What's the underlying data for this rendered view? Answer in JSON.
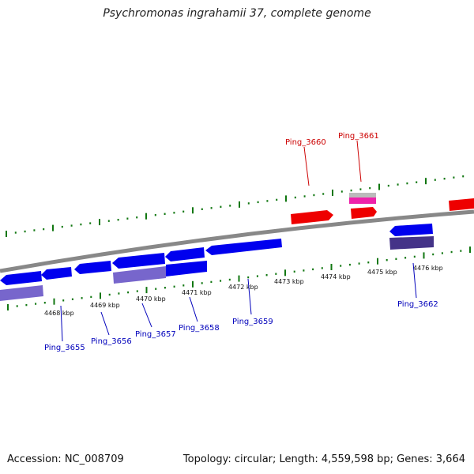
{
  "title": "Psychromonas ingrahamii 37, complete genome",
  "footer": {
    "accession": "Accession: NC_008709",
    "summary": "Topology: circular; Length: 4,559,598 bp; Genes: 3,664"
  },
  "colors": {
    "forward_gene": "#ee0000",
    "reverse_gene": "#0000ee",
    "forward_label": "#cc0000",
    "reverse_label": "#0000bb",
    "backbone": "#888888",
    "ticks": "#117711",
    "rna_feature": "#ee22aa",
    "pseudo_feature": "#bbbbbb",
    "reverse_cds": "#7766cc",
    "reverse_cds_dark": "#443388"
  },
  "scale_labels": [
    "4468 kbp",
    "4469 kbp",
    "4470 kbp",
    "4471 kbp",
    "4472 kbp",
    "4473 kbp",
    "4474 kbp",
    "4475 kbp",
    "4476 kbp"
  ],
  "gene_labels_forward": [
    "Ping_3660",
    "Ping_3661"
  ],
  "gene_labels_reverse": [
    "Ping_3655",
    "Ping_3656",
    "Ping_3657",
    "Ping_3658",
    "Ping_3659",
    "Ping_3662"
  ]
}
